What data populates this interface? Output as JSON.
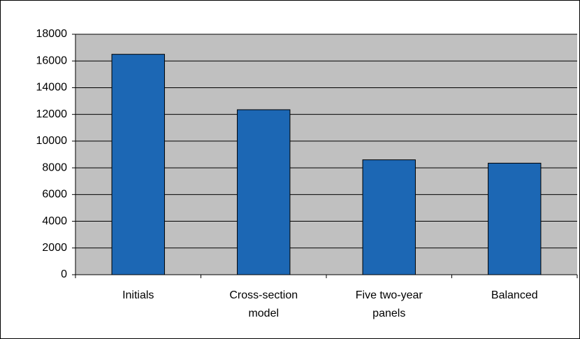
{
  "chart_data": {
    "type": "bar",
    "categories": [
      "Initials",
      "Cross-section model",
      "Five two-year panels",
      "Balanced"
    ],
    "values": [
      16500,
      12350,
      8600,
      8350
    ],
    "color": "#1c67b4",
    "ylim": [
      0,
      18000
    ],
    "yticks": [
      0,
      2000,
      4000,
      6000,
      8000,
      10000,
      12000,
      14000,
      16000,
      18000
    ],
    "grid": true
  }
}
